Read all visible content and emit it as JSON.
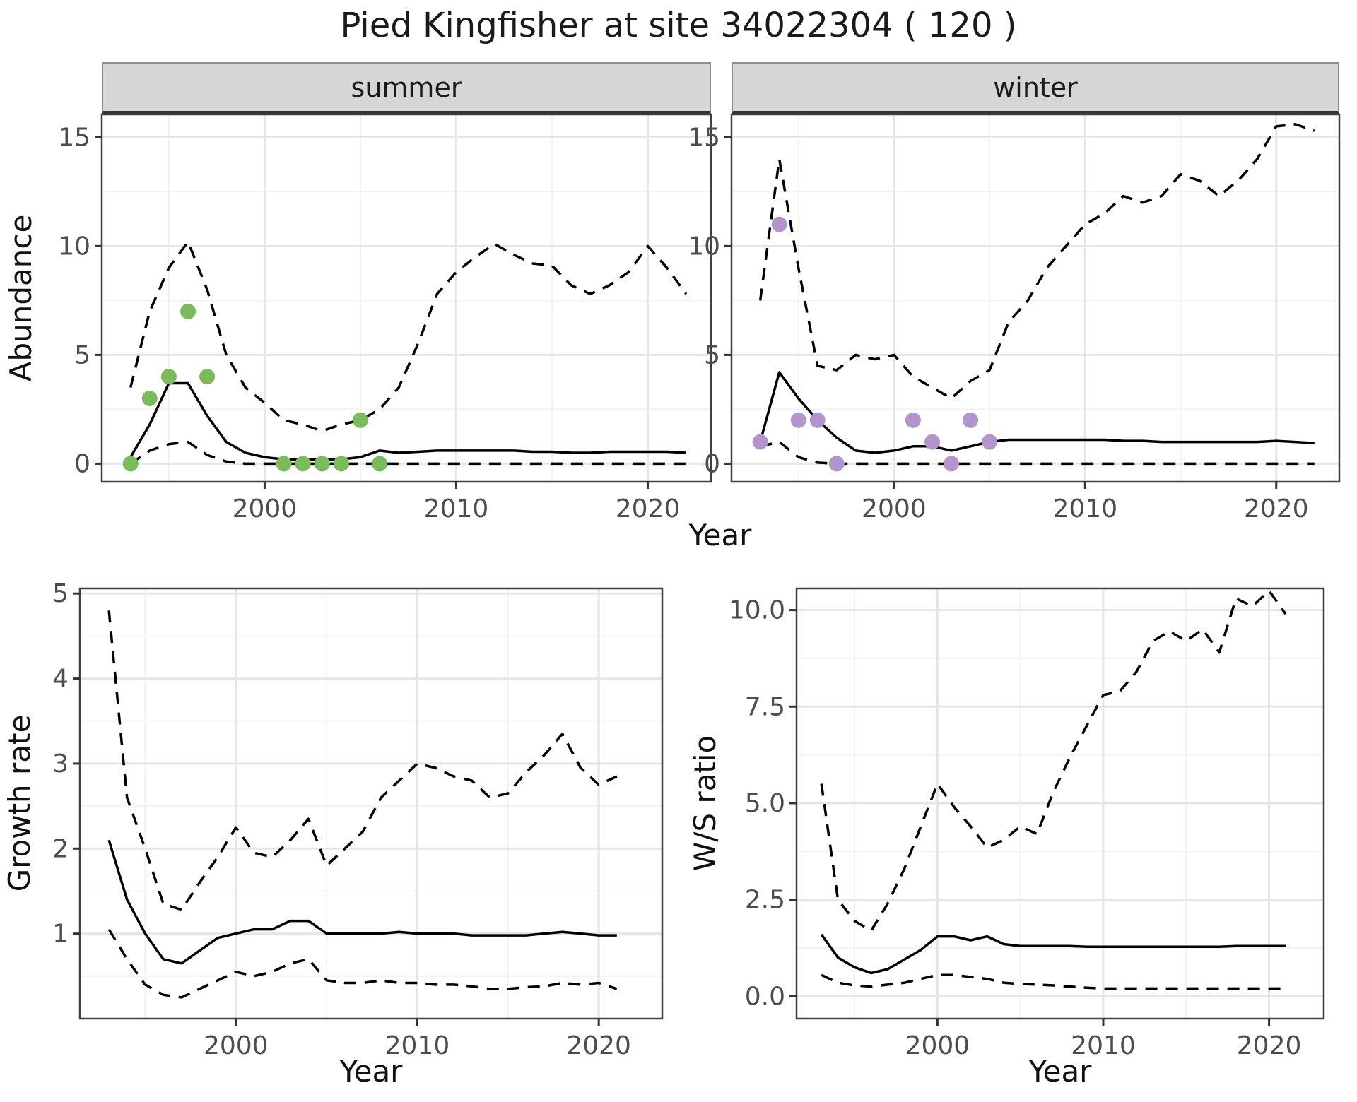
{
  "title": "Pied Kingfisher at site 34022304 ( 120 )",
  "colors": {
    "summer_points": "#7cbb5c",
    "winter_points": "#b394cb",
    "line": "#000000",
    "strip_background": "#d6d6d6",
    "grid_major": "#e6e6e6",
    "grid_minor": "#f2f2f2",
    "panel_border": "#404040"
  },
  "chart_data": [
    {
      "type": "line",
      "title": "summer",
      "xlabel": "Year",
      "ylabel": "Abundance",
      "xlim": [
        1991.5,
        2023.3
      ],
      "ylim": [
        -0.83,
        16.05
      ],
      "xticks": [
        2000,
        2010,
        2020
      ],
      "xtick_labels": [
        "2000",
        "2010",
        "2020"
      ],
      "yticks": [
        0,
        5,
        10,
        15
      ],
      "ytick_labels": [
        "0",
        "5",
        "10",
        "15"
      ],
      "xticks_minor": [
        1995,
        2005,
        2015
      ],
      "yticks_minor": [
        2.5,
        7.5,
        12.5
      ],
      "x": [
        1993,
        1994,
        1995,
        1996,
        1997,
        1998,
        1999,
        2000,
        2001,
        2002,
        2003,
        2004,
        2005,
        2006,
        2007,
        2008,
        2009,
        2010,
        2011,
        2012,
        2013,
        2014,
        2015,
        2016,
        2017,
        2018,
        2019,
        2020,
        2021,
        2022
      ],
      "series": [
        {
          "name": "mean",
          "style": "solid",
          "values": [
            0.3,
            1.8,
            3.7,
            3.7,
            2.2,
            1.0,
            0.5,
            0.3,
            0.2,
            0.2,
            0.2,
            0.2,
            0.3,
            0.6,
            0.5,
            0.55,
            0.6,
            0.6,
            0.6,
            0.6,
            0.6,
            0.55,
            0.55,
            0.5,
            0.5,
            0.55,
            0.55,
            0.55,
            0.55,
            0.5
          ]
        },
        {
          "name": "upper-ci",
          "style": "dashed",
          "values": [
            3.5,
            7.0,
            9.0,
            10.2,
            8.0,
            5.0,
            3.5,
            2.8,
            2.0,
            1.8,
            1.5,
            1.8,
            2.0,
            2.5,
            3.5,
            5.5,
            7.8,
            8.8,
            9.5,
            10.1,
            9.6,
            9.2,
            9.1,
            8.2,
            7.8,
            8.2,
            8.8,
            10.0,
            9.0,
            7.8
          ]
        },
        {
          "name": "lower-ci",
          "style": "dashed",
          "values": [
            0,
            0.6,
            0.9,
            1.0,
            0.4,
            0.1,
            0,
            0,
            0,
            0,
            0,
            0,
            0,
            0,
            0,
            0,
            0,
            0,
            0,
            0,
            0,
            0,
            0,
            0,
            0,
            0,
            0,
            0,
            0,
            0
          ]
        }
      ],
      "points": {
        "color": "#7cbb5c",
        "x": [
          1993,
          1994,
          1995,
          1996,
          1997,
          2001,
          2002,
          2003,
          2004,
          2005,
          2006
        ],
        "y": [
          0,
          3,
          4,
          7,
          4,
          0,
          0,
          0,
          0,
          2,
          0
        ]
      }
    },
    {
      "type": "line",
      "title": "winter",
      "xlabel": "Year",
      "ylabel": "Abundance",
      "xlim": [
        1991.5,
        2023.3
      ],
      "ylim": [
        -0.83,
        16.05
      ],
      "xticks": [
        2000,
        2010,
        2020
      ],
      "xtick_labels": [
        "2000",
        "2010",
        "2020"
      ],
      "yticks": [
        0,
        5,
        10,
        15
      ],
      "ytick_labels": [
        "0",
        "5",
        "10",
        "15"
      ],
      "xticks_minor": [
        1995,
        2005,
        2015
      ],
      "yticks_minor": [
        2.5,
        7.5,
        12.5
      ],
      "x": [
        1993,
        1994,
        1995,
        1996,
        1997,
        1998,
        1999,
        2000,
        2001,
        2002,
        2003,
        2004,
        2005,
        2006,
        2007,
        2008,
        2009,
        2010,
        2011,
        2012,
        2013,
        2014,
        2015,
        2016,
        2017,
        2018,
        2019,
        2020,
        2021,
        2022
      ],
      "series": [
        {
          "name": "mean",
          "style": "solid",
          "values": [
            1.0,
            4.2,
            3.0,
            2.0,
            1.2,
            0.6,
            0.5,
            0.6,
            0.8,
            0.8,
            0.6,
            0.8,
            1.0,
            1.1,
            1.1,
            1.1,
            1.1,
            1.1,
            1.1,
            1.05,
            1.05,
            1.0,
            1.0,
            1.0,
            1.0,
            1.0,
            1.0,
            1.05,
            1.0,
            0.95
          ]
        },
        {
          "name": "upper-ci",
          "style": "dashed",
          "values": [
            7.5,
            14.0,
            9.0,
            4.5,
            4.3,
            5.0,
            4.8,
            5.0,
            4.0,
            3.5,
            3.0,
            3.8,
            4.3,
            6.5,
            7.5,
            9.0,
            10.0,
            11.0,
            11.5,
            12.3,
            12.0,
            12.3,
            13.3,
            13.0,
            12.3,
            13.0,
            14.0,
            15.5,
            15.6,
            15.3
          ]
        },
        {
          "name": "lower-ci",
          "style": "dashed",
          "values": [
            0.8,
            1.0,
            0.3,
            0.05,
            0,
            0,
            0,
            0,
            0,
            0,
            0,
            0,
            0,
            0,
            0,
            0,
            0,
            0,
            0,
            0,
            0,
            0,
            0,
            0,
            0,
            0,
            0,
            0,
            0,
            0
          ]
        }
      ],
      "points": {
        "color": "#b394cb",
        "x": [
          1993,
          1994,
          1995,
          1996,
          1997,
          2001,
          2002,
          2003,
          2004,
          2005
        ],
        "y": [
          1,
          11,
          2,
          2,
          0,
          2,
          1,
          0,
          2,
          1
        ]
      }
    },
    {
      "type": "line",
      "title": "",
      "xlabel": "Year",
      "ylabel": "Growth rate",
      "xlim": [
        1991.4,
        2023.5
      ],
      "ylim": [
        0,
        5.06
      ],
      "xticks": [
        2000,
        2010,
        2020
      ],
      "xtick_labels": [
        "2000",
        "2010",
        "2020"
      ],
      "yticks": [
        1,
        2,
        3,
        4,
        5
      ],
      "ytick_labels": [
        "1",
        "2",
        "3",
        "4",
        "5"
      ],
      "xticks_minor": [
        1995,
        2005,
        2015
      ],
      "yticks_minor": [
        0.5,
        1.5,
        2.5,
        3.5,
        4.5
      ],
      "x": [
        1993,
        1994,
        1995,
        1996,
        1997,
        1998,
        1999,
        2000,
        2001,
        2002,
        2003,
        2004,
        2005,
        2006,
        2007,
        2008,
        2009,
        2010,
        2011,
        2012,
        2013,
        2014,
        2015,
        2016,
        2017,
        2018,
        2019,
        2020,
        2021
      ],
      "series": [
        {
          "name": "mean",
          "style": "solid",
          "values": [
            2.1,
            1.4,
            1.0,
            0.7,
            0.65,
            0.8,
            0.95,
            1.0,
            1.05,
            1.05,
            1.15,
            1.15,
            1.0,
            1.0,
            1.0,
            1.0,
            1.02,
            1.0,
            1.0,
            1.0,
            0.98,
            0.98,
            0.98,
            0.98,
            1.0,
            1.02,
            1.0,
            0.98,
            0.98
          ]
        },
        {
          "name": "upper-ci",
          "style": "dashed",
          "values": [
            4.8,
            2.6,
            2.0,
            1.35,
            1.28,
            1.6,
            1.9,
            2.25,
            1.95,
            1.9,
            2.1,
            2.35,
            1.8,
            2.0,
            2.2,
            2.6,
            2.8,
            3.0,
            2.95,
            2.85,
            2.8,
            2.6,
            2.65,
            2.9,
            3.1,
            3.35,
            2.95,
            2.75,
            2.85
          ]
        },
        {
          "name": "lower-ci",
          "style": "dashed",
          "values": [
            1.05,
            0.7,
            0.4,
            0.28,
            0.25,
            0.35,
            0.45,
            0.55,
            0.5,
            0.55,
            0.65,
            0.7,
            0.45,
            0.42,
            0.42,
            0.45,
            0.42,
            0.42,
            0.4,
            0.4,
            0.38,
            0.35,
            0.35,
            0.37,
            0.38,
            0.42,
            0.4,
            0.42,
            0.35
          ]
        }
      ]
    },
    {
      "type": "line",
      "title": "",
      "xlabel": "Year",
      "ylabel": "W/S ratio",
      "xlim": [
        1991.5,
        2023.3
      ],
      "ylim": [
        -0.58,
        10.56
      ],
      "xticks": [
        2000,
        2010,
        2020
      ],
      "xtick_labels": [
        "2000",
        "2010",
        "2020"
      ],
      "yticks": [
        0,
        2.5,
        5,
        7.5,
        10
      ],
      "ytick_labels": [
        "0.0",
        "2.5",
        "5.0",
        "7.5",
        "10.0"
      ],
      "xticks_minor": [
        1995,
        2005,
        2015
      ],
      "yticks_minor": [
        1.25,
        3.75,
        6.25,
        8.75
      ],
      "x": [
        1993,
        1994,
        1995,
        1996,
        1997,
        1998,
        1999,
        2000,
        2001,
        2002,
        2003,
        2004,
        2005,
        2006,
        2007,
        2008,
        2009,
        2010,
        2011,
        2012,
        2013,
        2014,
        2015,
        2016,
        2017,
        2018,
        2019,
        2020,
        2021
      ],
      "series": [
        {
          "name": "mean",
          "style": "solid",
          "values": [
            1.6,
            1.0,
            0.75,
            0.6,
            0.7,
            0.95,
            1.2,
            1.55,
            1.55,
            1.45,
            1.55,
            1.35,
            1.3,
            1.3,
            1.3,
            1.3,
            1.28,
            1.28,
            1.28,
            1.28,
            1.28,
            1.28,
            1.28,
            1.28,
            1.28,
            1.3,
            1.3,
            1.3,
            1.3
          ]
        },
        {
          "name": "upper-ci",
          "style": "dashed",
          "values": [
            5.5,
            2.5,
            1.95,
            1.7,
            2.4,
            3.3,
            4.4,
            5.5,
            4.9,
            4.4,
            3.85,
            4.05,
            4.4,
            4.2,
            5.3,
            6.2,
            7.0,
            7.8,
            7.9,
            8.4,
            9.2,
            9.45,
            9.2,
            9.5,
            8.9,
            10.3,
            10.1,
            10.5,
            9.9
          ]
        },
        {
          "name": "lower-ci",
          "style": "dashed",
          "values": [
            0.55,
            0.35,
            0.28,
            0.25,
            0.3,
            0.35,
            0.45,
            0.55,
            0.55,
            0.5,
            0.45,
            0.35,
            0.32,
            0.3,
            0.28,
            0.25,
            0.22,
            0.2,
            0.2,
            0.2,
            0.2,
            0.2,
            0.2,
            0.2,
            0.2,
            0.2,
            0.2,
            0.2,
            0.2
          ]
        }
      ]
    }
  ]
}
